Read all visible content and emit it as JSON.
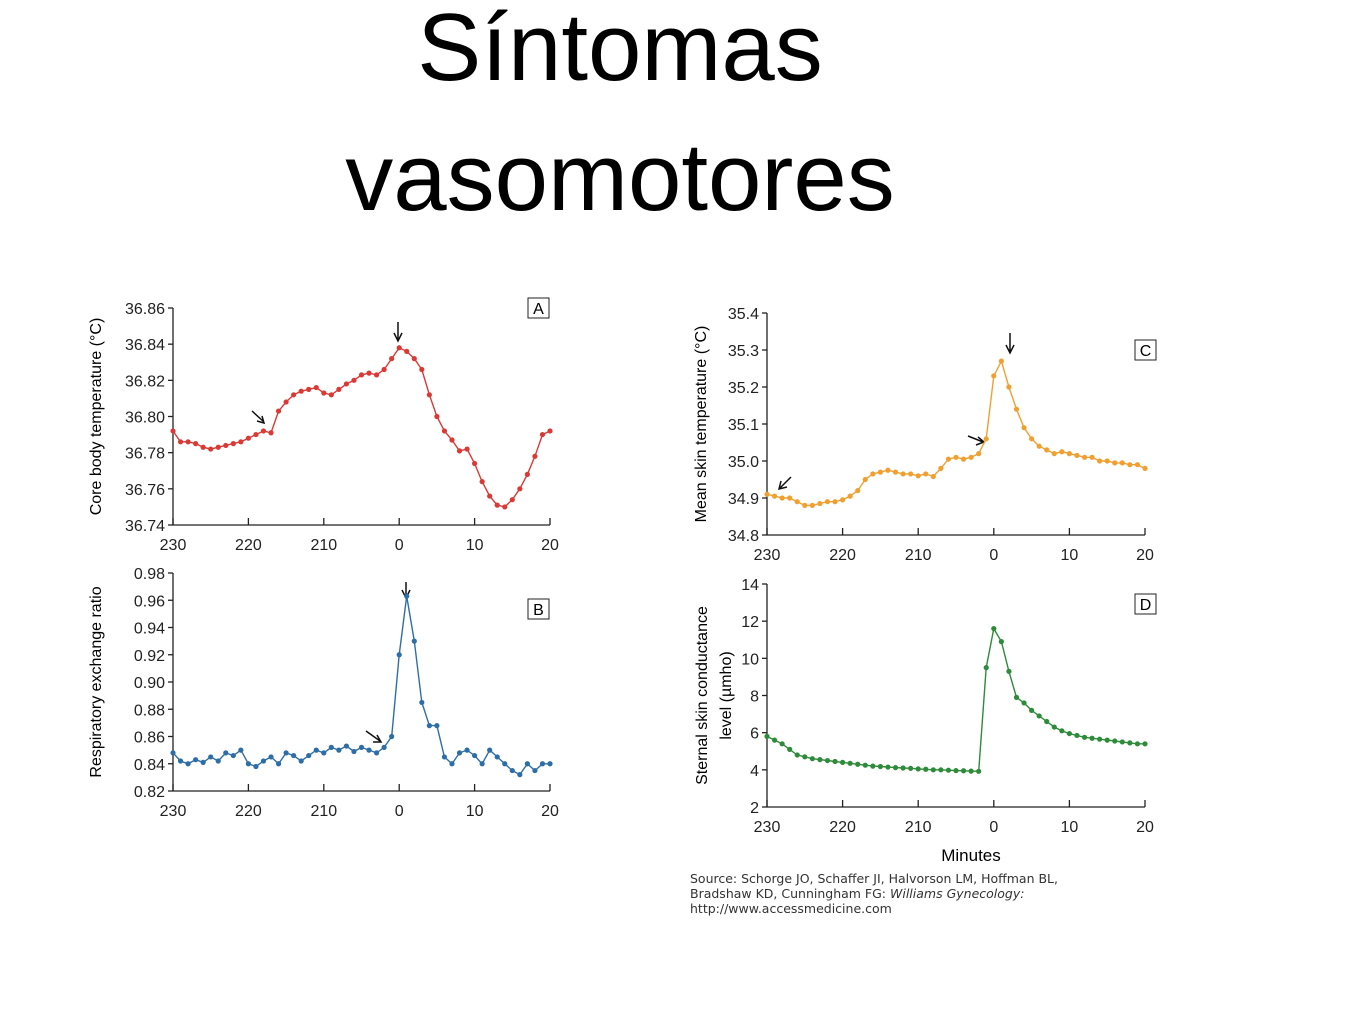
{
  "title": [
    "Síntomas",
    "vasomotores"
  ],
  "chart_data": [
    {
      "type": "line",
      "panel": "A",
      "ylabel": "Core body temperature (°C)",
      "color": "#d93a36",
      "x": [
        -30,
        -29,
        -28,
        -27,
        -26,
        -25,
        -24,
        -23,
        -22,
        -21,
        -20,
        -19,
        -18,
        -17,
        -16,
        -15,
        -14,
        -13,
        -12,
        -11,
        -10,
        -9,
        -8,
        -7,
        -6,
        -5,
        -4,
        -3,
        -2,
        -1,
        0,
        1,
        2,
        3,
        4,
        5,
        6,
        7,
        8,
        9,
        10,
        11,
        12,
        13,
        14,
        15,
        16,
        17,
        18,
        19,
        20
      ],
      "values": [
        36.792,
        36.786,
        36.786,
        36.785,
        36.783,
        36.782,
        36.783,
        36.784,
        36.785,
        36.786,
        36.788,
        36.79,
        36.792,
        36.791,
        36.803,
        36.808,
        36.812,
        36.814,
        36.815,
        36.816,
        36.813,
        36.812,
        36.815,
        36.818,
        36.82,
        36.823,
        36.824,
        36.823,
        36.826,
        36.832,
        36.838,
        36.836,
        36.832,
        36.826,
        36.812,
        36.8,
        36.792,
        36.787,
        36.781,
        36.782,
        36.774,
        36.764,
        36.756,
        36.751,
        36.75,
        36.754,
        36.76,
        36.768,
        36.778,
        36.79,
        36.792
      ],
      "xlim": [
        -30,
        20
      ],
      "xticks": [
        {
          "value": -30,
          "label": "230"
        },
        {
          "value": -20,
          "label": "220"
        },
        {
          "value": -10,
          "label": "210"
        },
        0,
        10,
        20
      ],
      "ylim": [
        36.74,
        36.86
      ],
      "yticks": [
        {
          "value": 36.74,
          "label": "36.74"
        },
        {
          "value": 36.76,
          "label": "36.76"
        },
        {
          "value": 36.78,
          "label": "36.78"
        },
        {
          "value": 36.8,
          "label": "36.80"
        },
        {
          "value": 36.82,
          "label": "36.82"
        },
        {
          "value": 36.84,
          "label": "36.84"
        },
        {
          "value": 36.86,
          "label": "36.86"
        }
      ]
    },
    {
      "type": "line",
      "panel": "B",
      "ylabel": "Respiratory exchange ratio",
      "color": "#2e6ea6",
      "x": [
        -30,
        -29,
        -28,
        -27,
        -26,
        -25,
        -24,
        -23,
        -22,
        -21,
        -20,
        -19,
        -18,
        -17,
        -16,
        -15,
        -14,
        -13,
        -12,
        -11,
        -10,
        -9,
        -8,
        -7,
        -6,
        -5,
        -4,
        -3,
        -2,
        -1,
        0,
        1,
        2,
        3,
        4,
        5,
        6,
        7,
        8,
        9,
        10,
        11,
        12,
        13,
        14,
        15,
        16,
        17,
        18,
        19,
        20
      ],
      "values": [
        0.848,
        0.842,
        0.84,
        0.843,
        0.841,
        0.845,
        0.842,
        0.848,
        0.846,
        0.85,
        0.84,
        0.838,
        0.842,
        0.845,
        0.84,
        0.848,
        0.846,
        0.842,
        0.846,
        0.85,
        0.848,
        0.852,
        0.85,
        0.853,
        0.849,
        0.852,
        0.85,
        0.848,
        0.852,
        0.86,
        0.92,
        0.963,
        0.93,
        0.885,
        0.868,
        0.868,
        0.845,
        0.84,
        0.848,
        0.85,
        0.846,
        0.84,
        0.85,
        0.845,
        0.84,
        0.835,
        0.832,
        0.84,
        0.835,
        0.84,
        0.84
      ],
      "xlim": [
        -30,
        20
      ],
      "xticks": [
        {
          "value": -30,
          "label": "230"
        },
        {
          "value": -20,
          "label": "220"
        },
        {
          "value": -10,
          "label": "210"
        },
        0,
        10,
        20
      ],
      "ylim": [
        0.82,
        0.98
      ],
      "yticks": [
        0.82,
        0.84,
        0.86,
        0.88,
        {
          "value": 0.9,
          "label": "0.90"
        },
        0.92,
        0.94,
        0.96,
        0.98
      ]
    },
    {
      "type": "line",
      "panel": "C",
      "ylabel": "Mean skin temperature (°C)",
      "color": "#f0a030",
      "x": [
        -30,
        -29,
        -28,
        -27,
        -26,
        -25,
        -24,
        -23,
        -22,
        -21,
        -20,
        -19,
        -18,
        -17,
        -16,
        -15,
        -14,
        -13,
        -12,
        -11,
        -10,
        -9,
        -8,
        -7,
        -6,
        -5,
        -4,
        -3,
        -2,
        -1,
        0,
        1,
        2,
        3,
        4,
        5,
        6,
        7,
        8,
        9,
        10,
        11,
        12,
        13,
        14,
        15,
        16,
        17,
        18,
        19,
        20
      ],
      "values": [
        34.91,
        34.905,
        34.9,
        34.9,
        34.89,
        34.88,
        34.88,
        34.885,
        34.89,
        34.89,
        34.895,
        34.905,
        34.92,
        34.95,
        34.965,
        34.97,
        34.975,
        34.97,
        34.965,
        34.965,
        34.96,
        34.965,
        34.958,
        34.98,
        35.005,
        35.01,
        35.005,
        35.01,
        35.02,
        35.06,
        35.23,
        35.27,
        35.2,
        35.14,
        35.09,
        35.06,
        35.04,
        35.03,
        35.02,
        35.025,
        35.02,
        35.015,
        35.01,
        35.01,
        35.0,
        35.0,
        34.995,
        34.995,
        34.99,
        34.99,
        34.98
      ],
      "xlim": [
        -30,
        20
      ],
      "xticks": [
        {
          "value": -30,
          "label": "230"
        },
        {
          "value": -20,
          "label": "220"
        },
        {
          "value": -10,
          "label": "210"
        },
        0,
        10,
        20
      ],
      "ylim": [
        34.8,
        35.4
      ],
      "yticks": [
        34.8,
        34.9,
        {
          "value": 35.0,
          "label": "35.0"
        },
        35.1,
        35.2,
        35.3,
        35.4
      ]
    },
    {
      "type": "line",
      "panel": "D",
      "ylabel": [
        "Sternal skin conductance",
        "level (µmho)"
      ],
      "xlabel": "Minutes",
      "color": "#2e8b3a",
      "x": [
        -30,
        -29,
        -28,
        -27,
        -26,
        -25,
        -24,
        -23,
        -22,
        -21,
        -20,
        -19,
        -18,
        -17,
        -16,
        -15,
        -14,
        -13,
        -12,
        -11,
        -10,
        -9,
        -8,
        -7,
        -6,
        -5,
        -4,
        -3,
        -2,
        -1,
        0,
        1,
        2,
        3,
        4,
        5,
        6,
        7,
        8,
        9,
        10,
        11,
        12,
        13,
        14,
        15,
        16,
        17,
        18,
        19,
        20
      ],
      "values": [
        5.8,
        5.6,
        5.4,
        5.1,
        4.8,
        4.7,
        4.6,
        4.55,
        4.5,
        4.45,
        4.4,
        4.35,
        4.3,
        4.25,
        4.2,
        4.18,
        4.15,
        4.12,
        4.1,
        4.08,
        4.05,
        4.03,
        4.0,
        4.0,
        3.98,
        3.96,
        3.95,
        3.93,
        3.92,
        9.5,
        11.6,
        10.9,
        9.3,
        7.9,
        7.6,
        7.2,
        6.9,
        6.6,
        6.3,
        6.1,
        5.95,
        5.85,
        5.75,
        5.7,
        5.65,
        5.6,
        5.55,
        5.5,
        5.45,
        5.4,
        5.4
      ],
      "xlim": [
        -30,
        20
      ],
      "xticks": [
        {
          "value": -30,
          "label": "230"
        },
        {
          "value": -20,
          "label": "220"
        },
        {
          "value": -10,
          "label": "210"
        },
        0,
        10,
        20
      ],
      "ylim": [
        2,
        14
      ],
      "yticks": [
        2,
        4,
        6,
        8,
        10,
        12,
        14
      ]
    }
  ],
  "source": {
    "line1": "Source: Schorge JO, Schaffer JI, Halvorson LM, Hoffman BL,",
    "line2a": "Bradshaw KD, Cunningham FG: ",
    "line2b": "Williams Gynecology:",
    "line3": "http://www.accessmedicine.com"
  }
}
